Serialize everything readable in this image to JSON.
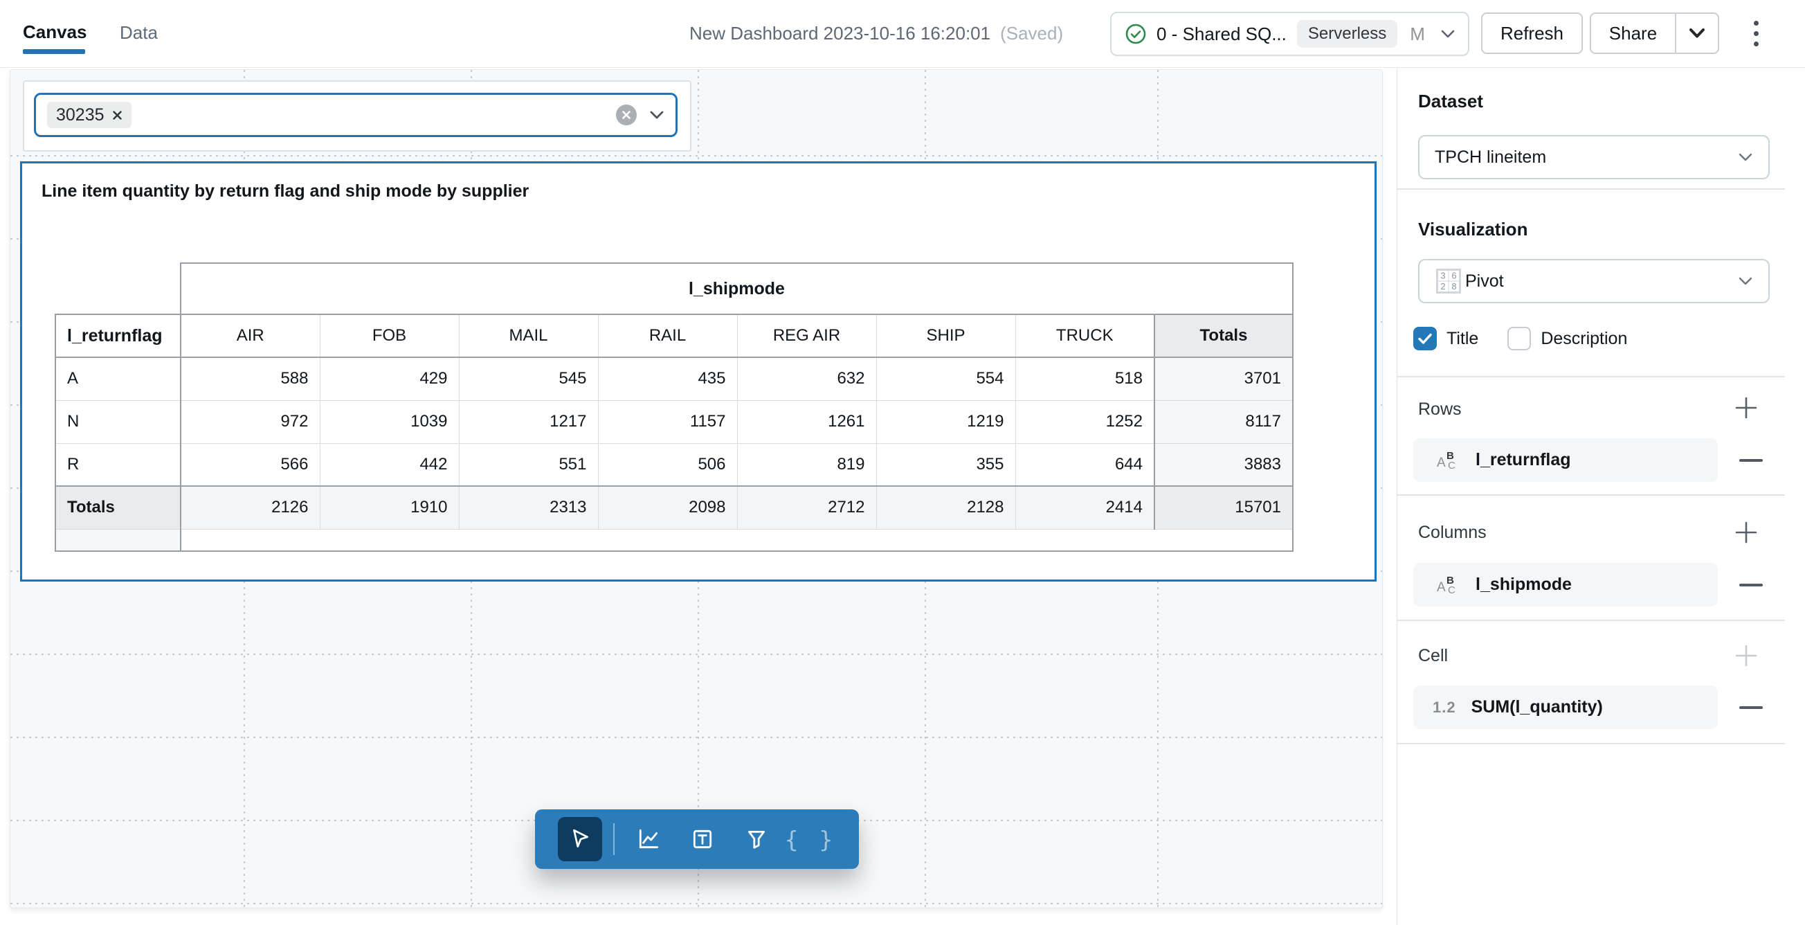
{
  "topbar": {
    "tabs": [
      {
        "label": "Canvas",
        "active": true
      },
      {
        "label": "Data",
        "active": false
      }
    ],
    "title": "New Dashboard 2023-10-16 16:20:01",
    "saved": "(Saved)",
    "warehouse": {
      "name": "0 - Shared SQ...",
      "badge": "Serverless",
      "size": "M",
      "status_icon": "check-circle-icon"
    },
    "refresh": "Refresh",
    "share": "Share",
    "kebab_icon": "vertical-dots-icon"
  },
  "canvas": {
    "filter": {
      "chip": "30235",
      "clear_icon": "clear-circle-icon",
      "chevron_icon": "chevron-down-icon"
    },
    "pivot": {
      "title": "Line item quantity by return flag and ship mode by supplier",
      "column_group": "l_shipmode",
      "row_header": "l_returnflag",
      "columns": [
        "AIR",
        "FOB",
        "MAIL",
        "RAIL",
        "REG AIR",
        "SHIP",
        "TRUCK",
        "Totals"
      ],
      "rows": [
        {
          "label": "A",
          "values": [
            588,
            429,
            545,
            435,
            632,
            554,
            518,
            3701
          ]
        },
        {
          "label": "N",
          "values": [
            972,
            1039,
            1217,
            1157,
            1261,
            1219,
            1252,
            8117
          ]
        },
        {
          "label": "R",
          "values": [
            566,
            442,
            551,
            506,
            819,
            355,
            644,
            3883
          ]
        },
        {
          "label": "Totals",
          "values": [
            2126,
            1910,
            2313,
            2098,
            2712,
            2128,
            2414,
            15701
          ]
        }
      ]
    },
    "toolbar_tools": [
      "cursor-icon",
      "line-chart-icon",
      "text-box-icon",
      "funnel-icon",
      "braces-icon"
    ],
    "braces_glyph": "{ }"
  },
  "sidebar": {
    "dataset_heading": "Dataset",
    "dataset_value": "TPCH lineitem",
    "visualization_heading": "Visualization",
    "visualization_value": "Pivot",
    "title_checkbox": "Title",
    "description_checkbox": "Description",
    "rows_heading": "Rows",
    "rows_field": "l_returnflag",
    "columns_heading": "Columns",
    "columns_field": "l_shipmode",
    "cell_heading": "Cell",
    "cell_field": "SUM(l_quantity)"
  },
  "colors": {
    "accent": "#2272b4",
    "toolbar_blue": "#2c7cba",
    "selected_tool_bg": "#0d3c60",
    "success_green": "#2d8a4c"
  }
}
